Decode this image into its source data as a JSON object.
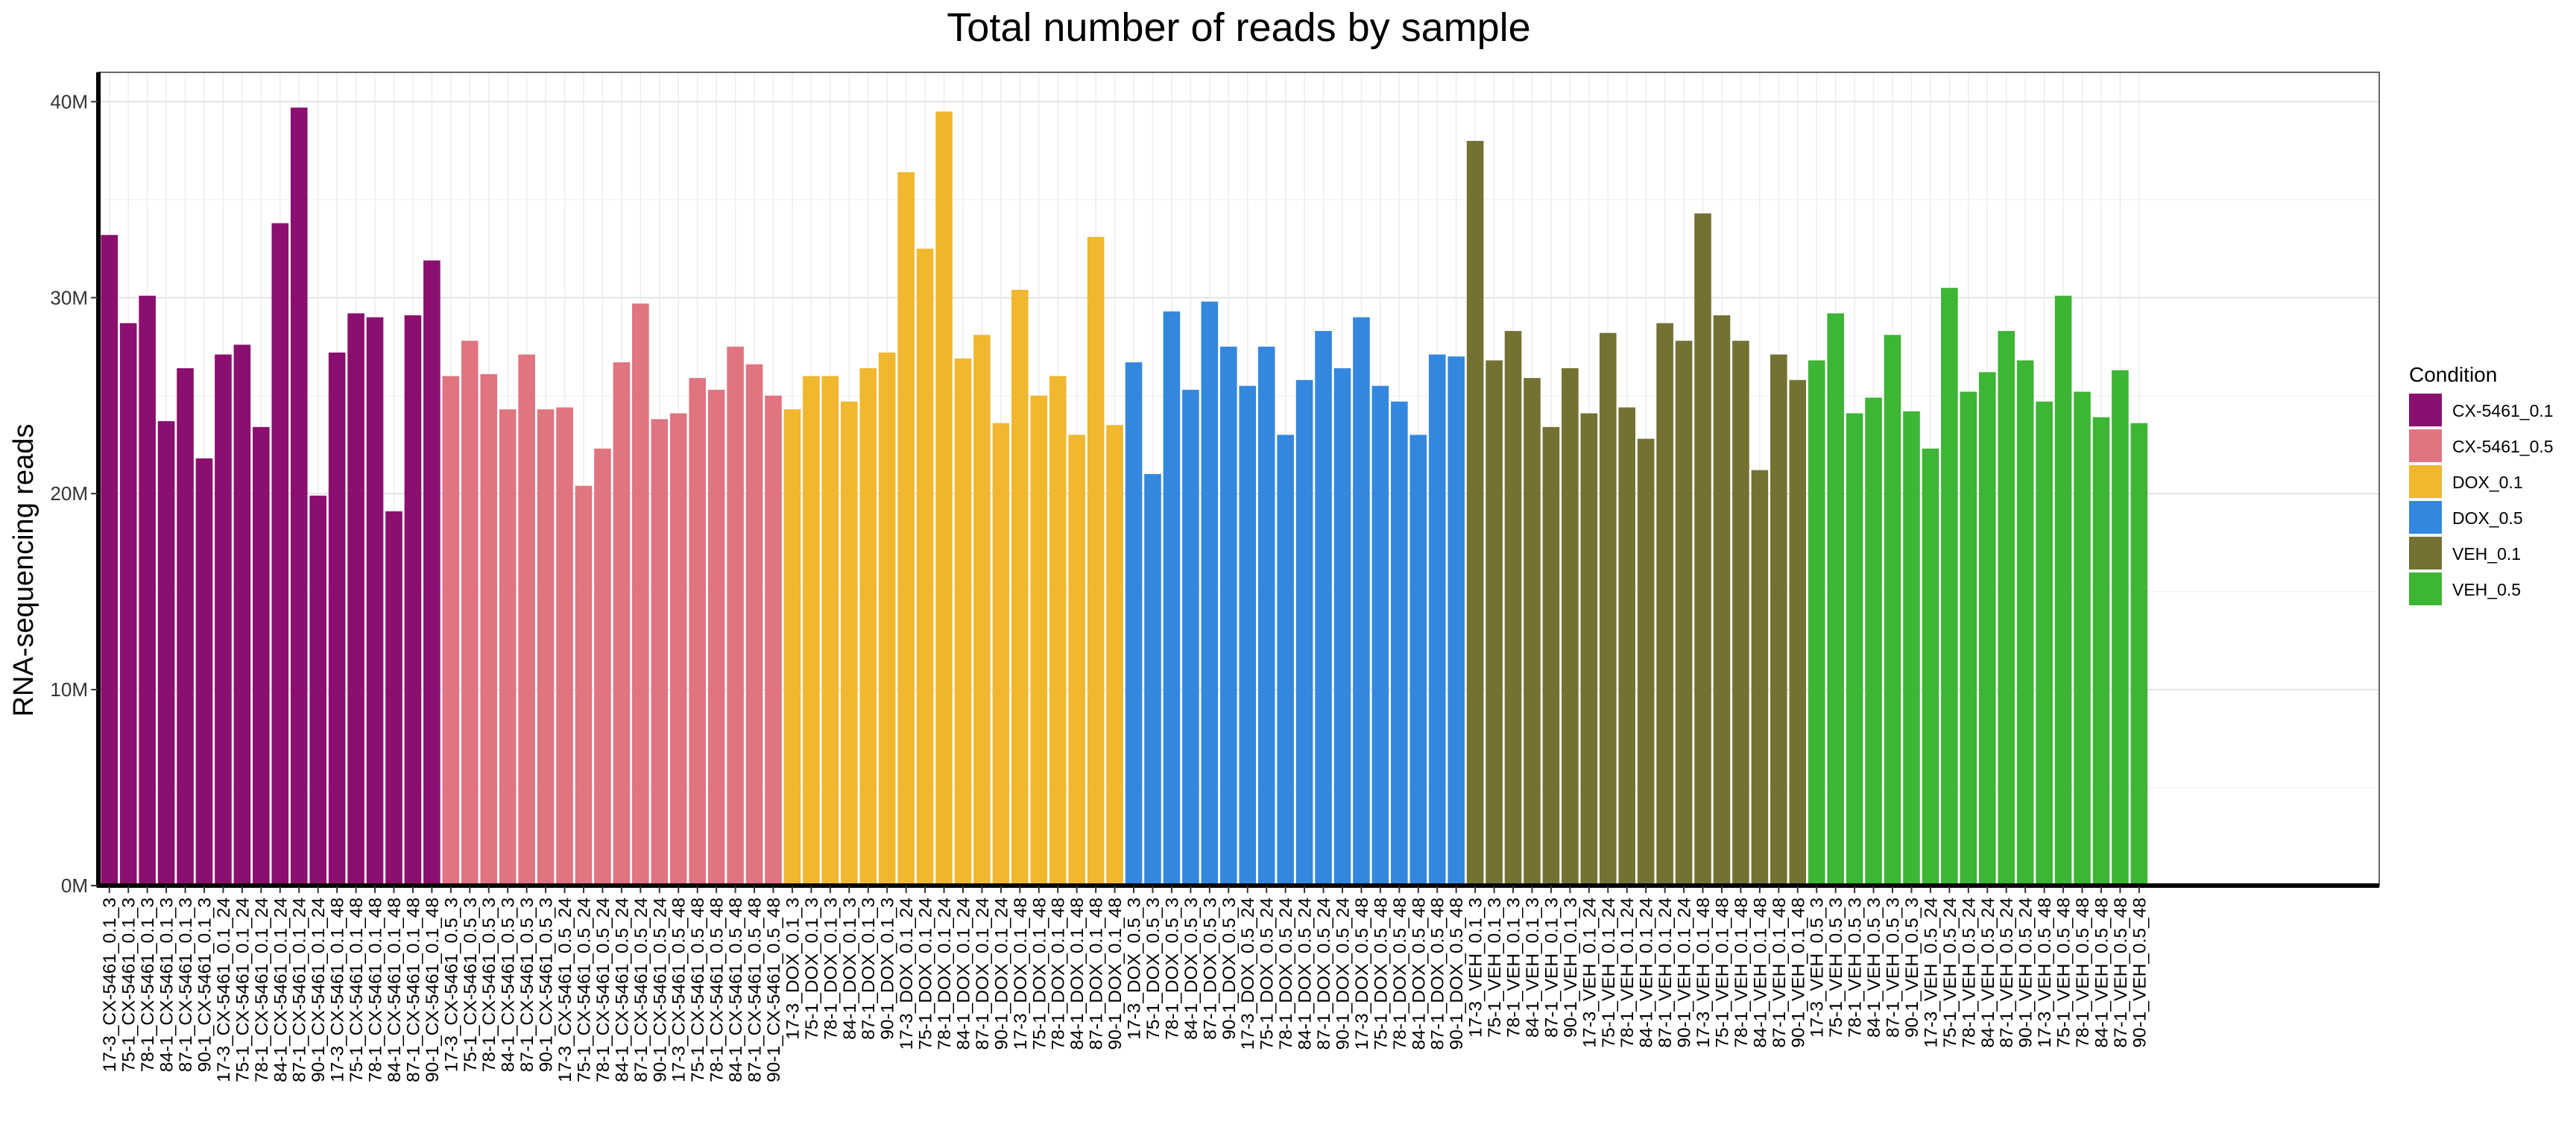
{
  "chart_data": {
    "type": "bar",
    "title": "Total number of reads by sample",
    "xlabel": "",
    "ylabel": "RNA-sequencing reads",
    "ylim": [
      0,
      41.5
    ],
    "yticks": [
      0,
      10,
      20,
      30,
      40
    ],
    "ytick_labels": [
      "0M",
      "10M",
      "20M",
      "30M",
      "40M"
    ],
    "grid": true,
    "legend": {
      "title": "Condition",
      "position": "right",
      "entries": [
        {
          "name": "CX-5461_0.1",
          "color": "#8B0F6E"
        },
        {
          "name": "CX-5461_0.5",
          "color": "#E07480"
        },
        {
          "name": "DOX_0.1",
          "color": "#F0B72F"
        },
        {
          "name": "DOX_0.5",
          "color": "#3487DE"
        },
        {
          "name": "VEH_0.1",
          "color": "#747233"
        },
        {
          "name": "VEH_0.5",
          "color": "#3DB535"
        }
      ]
    },
    "series": [
      {
        "name": "CX-5461_0.1",
        "categories": [
          "17-3_CX-5461_0.1_3",
          "75-1_CX-5461_0.1_3",
          "78-1_CX-5461_0.1_3",
          "84-1_CX-5461_0.1_3",
          "87-1_CX-5461_0.1_3",
          "90-1_CX-5461_0.1_3",
          "17-3_CX-5461_0.1_24",
          "75-1_CX-5461_0.1_24",
          "78-1_CX-5461_0.1_24",
          "84-1_CX-5461_0.1_24",
          "87-1_CX-5461_0.1_24",
          "90-1_CX-5461_0.1_24",
          "17-3_CX-5461_0.1_48",
          "75-1_CX-5461_0.1_48",
          "78-1_CX-5461_0.1_48",
          "84-1_CX-5461_0.1_48",
          "87-1_CX-5461_0.1_48",
          "90-1_CX-5461_0.1_48"
        ],
        "values": [
          33.2,
          28.7,
          30.1,
          23.7,
          26.4,
          21.8,
          27.1,
          27.6,
          23.4,
          33.8,
          39.7,
          19.9,
          27.2,
          29.2,
          29.0,
          19.1,
          29.1,
          31.9
        ]
      },
      {
        "name": "CX-5461_0.5",
        "categories": [
          "17-3_CX-5461_0.5_3",
          "75-1_CX-5461_0.5_3",
          "78-1_CX-5461_0.5_3",
          "84-1_CX-5461_0.5_3",
          "87-1_CX-5461_0.5_3",
          "90-1_CX-5461_0.5_3",
          "17-3_CX-5461_0.5_24",
          "75-1_CX-5461_0.5_24",
          "78-1_CX-5461_0.5_24",
          "84-1_CX-5461_0.5_24",
          "87-1_CX-5461_0.5_24",
          "90-1_CX-5461_0.5_24",
          "17-3_CX-5461_0.5_48",
          "75-1_CX-5461_0.5_48",
          "78-1_CX-5461_0.5_48",
          "84-1_CX-5461_0.5_48",
          "87-1_CX-5461_0.5_48",
          "90-1_CX-5461_0.5_48"
        ],
        "values": [
          26.0,
          27.8,
          26.1,
          24.3,
          27.1,
          24.3,
          24.4,
          20.4,
          22.3,
          26.7,
          29.7,
          23.8,
          24.1,
          25.9,
          25.3,
          27.5,
          26.6,
          25.0
        ]
      },
      {
        "name": "DOX_0.1",
        "categories": [
          "17-3_DOX_0.1_3",
          "75-1_DOX_0.1_3",
          "78-1_DOX_0.1_3",
          "84-1_DOX_0.1_3",
          "87-1_DOX_0.1_3",
          "90-1_DOX_0.1_3",
          "17-3_DOX_0.1_24",
          "75-1_DOX_0.1_24",
          "78-1_DOX_0.1_24",
          "84-1_DOX_0.1_24",
          "87-1_DOX_0.1_24",
          "90-1_DOX_0.1_24",
          "17-3_DOX_0.1_48",
          "75-1_DOX_0.1_48",
          "78-1_DOX_0.1_48",
          "84-1_DOX_0.1_48",
          "87-1_DOX_0.1_48",
          "90-1_DOX_0.1_48"
        ],
        "values": [
          24.3,
          26.0,
          26.0,
          24.7,
          26.4,
          27.2,
          36.4,
          32.5,
          39.5,
          26.9,
          28.1,
          23.6,
          30.4,
          25.0,
          26.0,
          23.0,
          33.1,
          23.5
        ]
      },
      {
        "name": "DOX_0.5",
        "categories": [
          "17-3_DOX_0.5_3",
          "75-1_DOX_0.5_3",
          "78-1_DOX_0.5_3",
          "84-1_DOX_0.5_3",
          "87-1_DOX_0.5_3",
          "90-1_DOX_0.5_3",
          "17-3_DOX_0.5_24",
          "75-1_DOX_0.5_24",
          "78-1_DOX_0.5_24",
          "84-1_DOX_0.5_24",
          "87-1_DOX_0.5_24",
          "90-1_DOX_0.5_24",
          "17-3_DOX_0.5_48",
          "75-1_DOX_0.5_48",
          "78-1_DOX_0.5_48",
          "84-1_DOX_0.5_48",
          "87-1_DOX_0.5_48",
          "90-1_DOX_0.5_48"
        ],
        "values": [
          26.7,
          21.0,
          29.3,
          25.3,
          29.8,
          27.5,
          25.5,
          27.5,
          23.0,
          25.8,
          28.3,
          26.4,
          29.0,
          25.5,
          24.7,
          23.0,
          27.1,
          27.0
        ]
      },
      {
        "name": "VEH_0.1",
        "categories": [
          "17-3_VEH_0.1_3",
          "75-1_VEH_0.1_3",
          "78-1_VEH_0.1_3",
          "84-1_VEH_0.1_3",
          "87-1_VEH_0.1_3",
          "90-1_VEH_0.1_3",
          "17-3_VEH_0.1_24",
          "75-1_VEH_0.1_24",
          "78-1_VEH_0.1_24",
          "84-1_VEH_0.1_24",
          "87-1_VEH_0.1_24",
          "90-1_VEH_0.1_24",
          "17-3_VEH_0.1_48",
          "75-1_VEH_0.1_48",
          "78-1_VEH_0.1_48",
          "84-1_VEH_0.1_48",
          "87-1_VEH_0.1_48",
          "90-1_VEH_0.1_48"
        ],
        "values": [
          38.0,
          26.8,
          28.3,
          25.9,
          23.4,
          26.4,
          24.1,
          28.2,
          24.4,
          22.8,
          28.7,
          27.8,
          34.3,
          29.1,
          27.8,
          21.2,
          27.1,
          25.8
        ]
      },
      {
        "name": "VEH_0.5",
        "categories": [
          "17-3_VEH_0.5_3",
          "75-1_VEH_0.5_3",
          "78-1_VEH_0.5_3",
          "84-1_VEH_0.5_3",
          "87-1_VEH_0.5_3",
          "90-1_VEH_0.5_3",
          "17-3_VEH_0.5_24",
          "75-1_VEH_0.5_24",
          "78-1_VEH_0.5_24",
          "84-1_VEH_0.5_24",
          "87-1_VEH_0.5_24",
          "90-1_VEH_0.5_24",
          "17-3_VEH_0.5_48",
          "75-1_VEH_0.5_48",
          "78-1_VEH_0.5_48",
          "84-1_VEH_0.5_48",
          "87-1_VEH_0.5_48",
          "90-1_VEH_0.5_48"
        ],
        "values": [
          26.8,
          29.2,
          24.1,
          24.9,
          28.1,
          24.2,
          22.3,
          30.5,
          25.2,
          26.2,
          28.3,
          26.8,
          24.7,
          30.1,
          25.2,
          23.9,
          26.3,
          23.6
        ]
      }
    ]
  }
}
